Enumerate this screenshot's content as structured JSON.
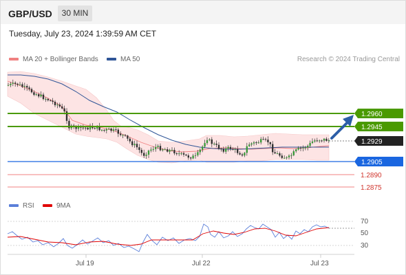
{
  "header": {
    "symbol": "GBP/USD",
    "timeframe": "30 MIN",
    "datetime": "Tuesday, July 23, 2024 1:39:59 AM CET"
  },
  "legend": {
    "ma20_label": "MA 20 + Bollinger Bands",
    "ma50_label": "MA 50",
    "ma20_color": "#f08080",
    "ma50_color": "#2f5597",
    "credit": "Research © 2024 Trading Central"
  },
  "levels": [
    {
      "value": "1.2960",
      "kind": "resistance",
      "color": "#4a9a00"
    },
    {
      "value": "1.2945",
      "kind": "resistance",
      "color": "#4a9a00"
    },
    {
      "value": "1.2929",
      "kind": "current",
      "color": "#222222"
    },
    {
      "value": "1.2905",
      "kind": "pivot",
      "color": "#1a66e0"
    },
    {
      "value": "1.2890",
      "kind": "support",
      "color": "#d0342c"
    },
    {
      "value": "1.2875",
      "kind": "support",
      "color": "#d0342c"
    }
  ],
  "rsi_panel": {
    "rsi_label": "RSI",
    "ma_label": "9MA",
    "rsi_color": "#5b7fd9",
    "ma_color": "#e00000",
    "ticks": [
      "70",
      "50",
      "30"
    ]
  },
  "x_axis": {
    "labels": [
      "Jul 19",
      "Jul 22",
      "Jul 23"
    ]
  }
}
